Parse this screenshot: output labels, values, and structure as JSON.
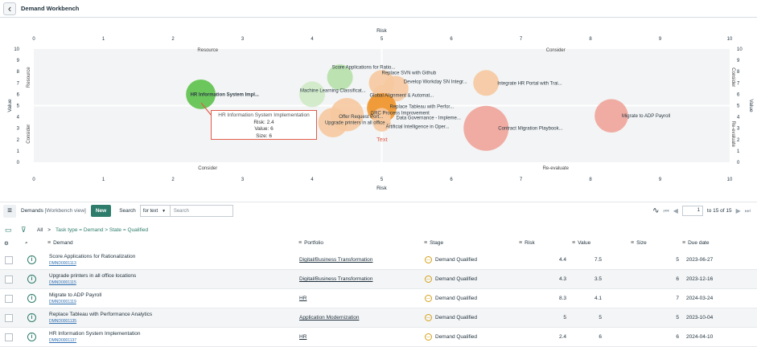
{
  "app": {
    "title": "Demand Workbench",
    "back_icon": "chevron-left-icon"
  },
  "chart_data": {
    "type": "scatter",
    "title": "",
    "xlabel": "Risk",
    "ylabel": "Value",
    "xlim": [
      0,
      10
    ],
    "ylim": [
      0,
      10
    ],
    "x_ticks": [
      "0",
      "1",
      "2",
      "3",
      "4",
      "5",
      "6",
      "7",
      "8",
      "9",
      "10"
    ],
    "y_ticks": [
      "0",
      "1",
      "2",
      "3",
      "4",
      "5",
      "6",
      "7",
      "8",
      "9",
      "10"
    ],
    "grid": false,
    "quadrants": {
      "top_left": "Resource",
      "top_right": "Consider",
      "bottom_left": "Consider",
      "bottom_right": "Re-evaluate",
      "left_upper": "Resource",
      "left_lower": "Consider",
      "right_upper": "Consider",
      "right_lower": "Re-evaluate"
    },
    "points": [
      {
        "name": "Score Applications for Ratio...",
        "x": 4.4,
        "y": 7.5,
        "size": 5,
        "color": "#b5e0a9"
      },
      {
        "name": "Replace SVN with Github",
        "x": 5.0,
        "y": 7.0,
        "size": 5,
        "color": "#f6c9a0"
      },
      {
        "name": "Develop Workday SN Integr...",
        "x": 5.2,
        "y": 6.5,
        "size": 5,
        "color": "#f6c9a0"
      },
      {
        "name": "Integrate HR Portal with Trai...",
        "x": 6.5,
        "y": 7.0,
        "size": 5,
        "color": "#f6c9a0"
      },
      {
        "name": "HR Information System Impl...",
        "x": 2.4,
        "y": 6,
        "size": 6,
        "color": "#5cc24a"
      },
      {
        "name": "Machine Learning Classificat...",
        "x": 4.0,
        "y": 6,
        "size": 5,
        "color": "#cfeac7"
      },
      {
        "name": "Global Alignment & Automat...",
        "x": 5.0,
        "y": 6,
        "size": 3,
        "color": "#f6c9a0"
      },
      {
        "name": "Replace Tableau with Perfor...",
        "x": 5.0,
        "y": 5,
        "size": 5,
        "color": "#f6c9a0"
      },
      {
        "name": "Offer Request Port...",
        "x": 4.5,
        "y": 4.2,
        "size": 7,
        "color": "#f6c9a0"
      },
      {
        "name": "GRC Process Improvement",
        "x": 5.0,
        "y": 4.8,
        "size": 6,
        "color": "#f0962e"
      },
      {
        "name": "Data Governance - Impleme...",
        "x": 5.0,
        "y": 4.0,
        "size": 3,
        "color": "#f6c9a0"
      },
      {
        "name": "Artificial Intelligence in Oper...",
        "x": 5.0,
        "y": 3.5,
        "size": 3,
        "color": "#f6c9a0"
      },
      {
        "name": "Upgrade printers in all office ...",
        "x": 4.3,
        "y": 3.5,
        "size": 6,
        "color": "#f6c9a0"
      },
      {
        "name": "Contract Migration Playbook...",
        "x": 6.5,
        "y": 3.0,
        "size": 10,
        "color": "#f0a49a"
      },
      {
        "name": "Migrate to ADP Payroll",
        "x": 8.3,
        "y": 4.1,
        "size": 7,
        "color": "#f0a49a"
      }
    ],
    "annotation_text": "Text"
  },
  "tooltip": {
    "title": "HR Information System Implementation",
    "risk": "Risk: 2.4",
    "value": "Value: 6",
    "size": "Size: 6"
  },
  "list": {
    "menu_icon": "hamburger-icon",
    "title": "Demands",
    "view": "[Workbench view]",
    "new_label": "New",
    "search_label": "Search",
    "search_field": "for text",
    "search_placeholder": "Search",
    "page": "1",
    "page_range": "to 15 of 15"
  },
  "filter": {
    "all": "All",
    "sep": ">",
    "crumb": "Task type = Demand > State = Qualified"
  },
  "columns": {
    "demand": "Demand",
    "portfolio": "Portfolio",
    "stage": "Stage",
    "risk": "Risk",
    "value": "Value",
    "size": "Size",
    "due": "Due date"
  },
  "rows": [
    {
      "name": "Score Applications for Rationalization",
      "number": "DMND0001113",
      "portfolio": "Digital/Business Transformation",
      "stage": "Demand Qualified",
      "risk": "4.4",
      "value": "7.5",
      "size": "5",
      "due": "2023-06-27"
    },
    {
      "name": "Upgrade printers in all office locations",
      "number": "DMND0001115",
      "portfolio": "Digital/Business Transformation",
      "stage": "Demand Qualified",
      "risk": "4.3",
      "value": "3.5",
      "size": "6",
      "due": "2023-12-16"
    },
    {
      "name": "Migrate to ADP Payroll",
      "number": "DMND0001119",
      "portfolio": "HR",
      "stage": "Demand Qualified",
      "risk": "8.3",
      "value": "4.1",
      "size": "7",
      "due": "2024-03-24"
    },
    {
      "name": "Replace Tableau with Performance Analytics",
      "number": "DMND0001135",
      "portfolio": "Application Modernization",
      "stage": "Demand Qualified",
      "risk": "5",
      "value": "5",
      "size": "5",
      "due": "2023-10-04"
    },
    {
      "name": "HR Information System Implementation",
      "number": "DMND0001137",
      "portfolio": "HR",
      "stage": "Demand Qualified",
      "risk": "2.4",
      "value": "6",
      "size": "6",
      "due": "2024-04-10"
    }
  ]
}
